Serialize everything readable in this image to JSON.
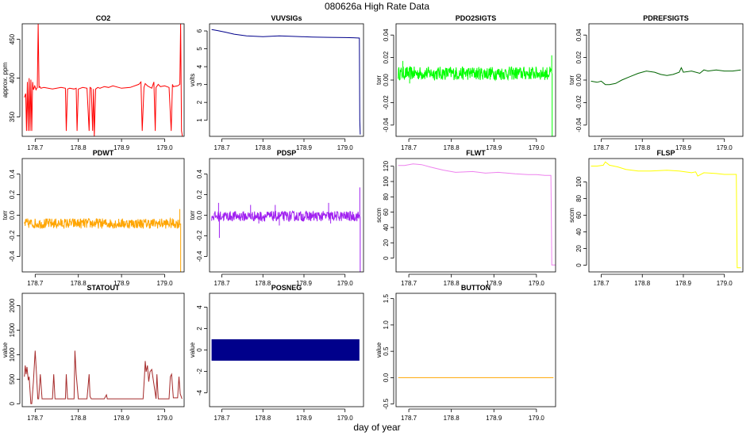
{
  "figure": {
    "main_title": "080626a   High Rate Data",
    "xlabel": "day of year"
  },
  "chart_data": [
    {
      "name": "CO2",
      "type": "line",
      "title": "CO2",
      "ylabel": "approx. ppm",
      "color": "#ff0000",
      "xlim": [
        178.67,
        179.045
      ],
      "ylim": [
        325,
        470
      ],
      "xticks": [
        178.7,
        178.8,
        178.9,
        179.0
      ],
      "xtick_labels": [
        "178.7",
        "178.8",
        "178.9",
        "179.0"
      ],
      "yticks": [
        350,
        400,
        450
      ],
      "ytick_labels": [
        "350",
        "400",
        "450"
      ],
      "series": [
        {
          "name": "CO2",
          "x": [
            178.675,
            178.678,
            178.68,
            178.682,
            178.684,
            178.686,
            178.688,
            178.69,
            178.692,
            178.694,
            178.696,
            178.699,
            178.702,
            178.705,
            178.707,
            178.709,
            178.711,
            178.713,
            178.72,
            178.74,
            178.76,
            178.77,
            178.772,
            178.775,
            178.78,
            178.79,
            178.795,
            178.797,
            178.8,
            178.81,
            178.82,
            178.825,
            178.827,
            178.83,
            178.833,
            178.835,
            178.837,
            178.84,
            178.845,
            178.85,
            178.86,
            178.87,
            178.88,
            178.9,
            178.92,
            178.94,
            178.945,
            178.948,
            178.952,
            178.955,
            178.96,
            178.97,
            178.975,
            178.978,
            178.98,
            178.985,
            178.99,
            179.0,
            179.01,
            179.015,
            179.018,
            179.02,
            179.03,
            179.035,
            179.037,
            179.039,
            179.041
          ],
          "y": [
            375,
            380,
            332,
            395,
            332,
            400,
            332,
            398,
            332,
            395,
            385,
            390,
            385,
            388,
            470,
            388,
            389,
            387,
            388,
            386,
            388,
            387,
            332,
            386,
            387,
            386,
            387,
            332,
            386,
            388,
            387,
            332,
            388,
            387,
            332,
            386,
            325,
            386,
            388,
            387,
            389,
            388,
            390,
            387,
            388,
            392,
            395,
            332,
            388,
            393,
            390,
            387,
            395,
            332,
            388,
            392,
            389,
            390,
            388,
            332,
            392,
            389,
            390,
            392,
            470,
            332,
            325
          ]
        }
      ]
    },
    {
      "name": "VUVSIGs",
      "type": "line",
      "title": "VUVSIGs",
      "ylabel": "volts",
      "color": "#00008b",
      "xlim": [
        178.67,
        179.045
      ],
      "ylim": [
        0.1,
        6.4
      ],
      "xticks": [
        178.7,
        178.8,
        178.9,
        179.0
      ],
      "xtick_labels": [
        "178.7",
        "178.8",
        "178.9",
        "179.0"
      ],
      "yticks": [
        1,
        2,
        3,
        4,
        5,
        6
      ],
      "ytick_labels": [
        "1",
        "2",
        "3",
        "4",
        "5",
        "6"
      ],
      "series": [
        {
          "name": "VUVSIGs",
          "x": [
            178.675,
            178.69,
            178.71,
            178.73,
            178.76,
            178.8,
            178.84,
            178.88,
            178.92,
            178.96,
            179.0,
            179.02,
            179.035,
            179.036,
            179.037
          ],
          "y": [
            6.08,
            6.02,
            5.92,
            5.82,
            5.72,
            5.68,
            5.72,
            5.69,
            5.66,
            5.64,
            5.63,
            5.62,
            5.6,
            1.0,
            0.2
          ]
        }
      ]
    },
    {
      "name": "PDO2SIGTS",
      "type": "line",
      "title": "PDO2SIGTS",
      "ylabel": "torr",
      "color": "#00ff00",
      "xlim": [
        178.67,
        179.045
      ],
      "ylim": [
        -0.05,
        0.05
      ],
      "xticks": [
        178.7,
        178.8,
        178.9,
        179.0
      ],
      "xtick_labels": [
        "178.7",
        "178.8",
        "178.9",
        "179.0"
      ],
      "yticks": [
        -0.04,
        -0.02,
        0.0,
        0.02,
        0.04
      ],
      "ytick_labels": [
        "-0.04",
        "-0.02",
        "0.00",
        "0.02",
        "0.04"
      ],
      "series": [
        {
          "name": "PDO2SIGTS",
          "x": [
            178.675,
            179.035
          ],
          "y": [
            0.006,
            0.006
          ]
        }
      ],
      "noise_band": {
        "center": 0.006,
        "amplitude": 0.006,
        "spikes": [
          [
            178.686,
            0.017
          ],
          [
            178.702,
            -0.003
          ],
          [
            179.036,
            0.022
          ],
          [
            179.037,
            -0.05
          ]
        ]
      }
    },
    {
      "name": "PDREFSIGTS",
      "type": "line",
      "title": "PDREFSIGTS",
      "ylabel": "torr",
      "color": "#006400",
      "xlim": [
        178.67,
        179.045
      ],
      "ylim": [
        -0.05,
        0.05
      ],
      "xticks": [
        178.7,
        178.8,
        178.9,
        179.0
      ],
      "xtick_labels": [
        "178.7",
        "178.8",
        "178.9",
        "179.0"
      ],
      "yticks": [
        -0.04,
        -0.02,
        0.0,
        0.02,
        0.04
      ],
      "ytick_labels": [
        "-0.04",
        "-0.02",
        "0.00",
        "0.02",
        "0.04"
      ],
      "series": [
        {
          "name": "PDREFSIGTS",
          "x": [
            178.675,
            178.69,
            178.7,
            178.71,
            178.72,
            178.735,
            178.75,
            178.77,
            178.79,
            178.81,
            178.83,
            178.845,
            178.86,
            178.875,
            178.89,
            178.895,
            178.9,
            178.92,
            178.94,
            178.95,
            178.96,
            178.98,
            179.0,
            179.02,
            179.04
          ],
          "y": [
            -0.001,
            -0.002,
            -0.001,
            -0.004,
            -0.004,
            -0.003,
            0.0,
            0.003,
            0.006,
            0.008,
            0.007,
            0.005,
            0.004,
            0.005,
            0.007,
            0.011,
            0.007,
            0.008,
            0.006,
            0.009,
            0.008,
            0.009,
            0.008,
            0.008,
            0.009
          ]
        }
      ]
    },
    {
      "name": "PDWT",
      "type": "line",
      "title": "PDWT",
      "ylabel": "torr",
      "color": "#ffa500",
      "xlim": [
        178.67,
        179.045
      ],
      "ylim": [
        -0.55,
        0.55
      ],
      "xticks": [
        178.7,
        178.8,
        178.9,
        179.0
      ],
      "xtick_labels": [
        "178.7",
        "178.8",
        "178.9",
        "179.0"
      ],
      "yticks": [
        -0.4,
        -0.2,
        0.0,
        0.2,
        0.4
      ],
      "ytick_labels": [
        "-0.4",
        "-0.2",
        "0.0",
        "0.2",
        "0.4"
      ],
      "series": [
        {
          "name": "PDWT",
          "x": [
            178.675,
            179.035
          ],
          "y": [
            -0.08,
            -0.08
          ]
        }
      ],
      "noise_band": {
        "center": -0.08,
        "amplitude": 0.05,
        "spikes": [
          [
            179.035,
            0.06
          ],
          [
            179.037,
            -0.55
          ]
        ]
      }
    },
    {
      "name": "PDSP",
      "type": "line",
      "title": "PDSP",
      "ylabel": "torr",
      "color": "#a020f0",
      "xlim": [
        178.67,
        179.045
      ],
      "ylim": [
        -0.55,
        0.55
      ],
      "xticks": [
        178.7,
        178.8,
        178.9,
        179.0
      ],
      "xtick_labels": [
        "178.7",
        "178.8",
        "178.9",
        "179.0"
      ],
      "yticks": [
        -0.4,
        -0.2,
        0.0,
        0.2,
        0.4
      ],
      "ytick_labels": [
        "-0.4",
        "-0.2",
        "0.0",
        "0.2",
        "0.4"
      ],
      "series": [
        {
          "name": "PDSP",
          "x": [
            178.675,
            179.035
          ],
          "y": [
            -0.01,
            -0.01
          ]
        }
      ],
      "noise_band": {
        "center": -0.01,
        "amplitude": 0.05,
        "spikes": [
          [
            178.692,
            0.12
          ],
          [
            178.694,
            -0.22
          ],
          [
            178.77,
            0.1
          ],
          [
            178.79,
            -0.08
          ],
          [
            178.83,
            0.1
          ],
          [
            178.84,
            -0.1
          ],
          [
            178.96,
            0.12
          ],
          [
            178.965,
            -0.08
          ],
          [
            179.036,
            0.27
          ],
          [
            179.037,
            -0.55
          ]
        ]
      }
    },
    {
      "name": "FLWT",
      "type": "line",
      "title": "FLWT",
      "ylabel": "sccm",
      "color": "#ee82ee",
      "xlim": [
        178.67,
        179.045
      ],
      "ylim": [
        -18,
        130
      ],
      "xticks": [
        178.7,
        178.8,
        178.9,
        179.0
      ],
      "xtick_labels": [
        "178.7",
        "178.8",
        "178.9",
        "179.0"
      ],
      "yticks": [
        0,
        20,
        40,
        60,
        80,
        100,
        120
      ],
      "ytick_labels": [
        "0",
        "20",
        "40",
        "60",
        "80",
        "100",
        "120"
      ],
      "series": [
        {
          "name": "FLWT",
          "x": [
            178.675,
            178.69,
            178.71,
            178.73,
            178.75,
            178.78,
            178.81,
            178.85,
            178.88,
            178.91,
            178.95,
            178.98,
            179.0,
            179.02,
            179.034,
            179.035,
            179.036,
            179.045
          ],
          "y": [
            121,
            121,
            123,
            122,
            119,
            115,
            112,
            113,
            111,
            112,
            110,
            109,
            109,
            108,
            108,
            60,
            -9,
            -9
          ]
        }
      ]
    },
    {
      "name": "FLSP",
      "type": "line",
      "title": "FLSP",
      "ylabel": "sccm",
      "color": "#ffff00",
      "xlim": [
        178.67,
        179.045
      ],
      "ylim": [
        -8,
        128
      ],
      "xticks": [
        178.7,
        178.8,
        178.9,
        179.0
      ],
      "xtick_labels": [
        "178.7",
        "178.8",
        "178.9",
        "179.0"
      ],
      "yticks": [
        0,
        20,
        40,
        60,
        80,
        100
      ],
      "ytick_labels": [
        "0",
        "20",
        "40",
        "60",
        "80",
        "100"
      ],
      "series": [
        {
          "name": "FLSP",
          "x": [
            178.675,
            178.69,
            178.705,
            178.71,
            178.72,
            178.74,
            178.76,
            178.79,
            178.82,
            178.86,
            178.89,
            178.92,
            178.93,
            178.935,
            178.95,
            178.98,
            179.0,
            179.02,
            179.029,
            179.03,
            179.031,
            179.04
          ],
          "y": [
            119,
            119,
            120,
            124,
            120,
            118,
            115,
            113,
            113,
            114,
            113,
            111,
            112,
            107,
            111,
            110,
            109,
            109,
            109,
            60,
            -3,
            -3
          ]
        }
      ]
    },
    {
      "name": "STATOUT",
      "type": "line",
      "title": "STATOUT",
      "ylabel": "value",
      "color": "#a52a2a",
      "xlim": [
        178.67,
        179.045
      ],
      "ylim": [
        -60,
        2250
      ],
      "xticks": [
        178.7,
        178.8,
        178.9,
        179.0
      ],
      "xtick_labels": [
        "178.7",
        "178.8",
        "178.9",
        "179.0"
      ],
      "yticks": [
        0,
        500,
        1000,
        1500,
        2000
      ],
      "ytick_labels": [
        "0",
        "500",
        "1000",
        "1500",
        "2000"
      ],
      "series": [
        {
          "name": "STATOUT",
          "x": [
            178.675,
            178.677,
            178.679,
            178.681,
            178.684,
            178.686,
            178.69,
            178.692,
            178.696,
            178.7,
            178.703,
            178.706,
            178.708,
            178.712,
            178.716,
            178.72,
            178.74,
            178.743,
            178.746,
            178.75,
            178.77,
            178.772,
            178.775,
            178.79,
            178.792,
            178.795,
            178.8,
            178.82,
            178.825,
            178.827,
            178.83,
            178.85,
            178.86,
            178.865,
            178.867,
            178.87,
            178.9,
            178.95,
            178.953,
            178.955,
            178.957,
            178.96,
            178.963,
            178.966,
            178.97,
            178.975,
            178.98,
            178.982,
            178.985,
            179.01,
            179.013,
            179.016,
            179.02,
            179.03,
            179.033,
            179.036,
            179.04
          ],
          "y": [
            550,
            780,
            600,
            750,
            480,
            550,
            0,
            0,
            450,
            1080,
            600,
            100,
            100,
            600,
            100,
            100,
            100,
            600,
            100,
            100,
            100,
            600,
            100,
            100,
            1080,
            600,
            100,
            100,
            600,
            150,
            100,
            100,
            100,
            180,
            100,
            100,
            100,
            100,
            550,
            870,
            650,
            780,
            450,
            650,
            700,
            400,
            100,
            600,
            100,
            100,
            550,
            600,
            120,
            120,
            550,
            200,
            100
          ]
        }
      ]
    },
    {
      "name": "POSNEG",
      "type": "bar",
      "title": "POSNEG",
      "ylabel": "value",
      "color": "#00008b",
      "xlim": [
        178.67,
        179.045
      ],
      "ylim": [
        -5.3,
        5.3
      ],
      "xticks": [
        178.7,
        178.8,
        178.9,
        179.0
      ],
      "xtick_labels": [
        "178.7",
        "178.8",
        "178.9",
        "179.0"
      ],
      "yticks": [
        -4,
        -2,
        0,
        2,
        4
      ],
      "ytick_labels": [
        "-4",
        "-2",
        "0",
        "2",
        "4"
      ],
      "series": [
        {
          "name": "POSNEG",
          "x": [
            178.675,
            179.035
          ],
          "y_min": -1,
          "y_max": 1
        }
      ]
    },
    {
      "name": "BUTTON",
      "type": "line",
      "title": "BUTTON",
      "ylabel": "value",
      "color": "#ffa500",
      "xlim": [
        178.67,
        179.045
      ],
      "ylim": [
        -0.55,
        1.6
      ],
      "xticks": [
        178.7,
        178.8,
        178.9,
        179.0
      ],
      "xtick_labels": [
        "178.7",
        "178.8",
        "178.9",
        "179.0"
      ],
      "yticks": [
        -0.5,
        0.0,
        0.5,
        1.0,
        1.5
      ],
      "ytick_labels": [
        "-0.5",
        "0.0",
        "0.5",
        "1.0",
        "1.5"
      ],
      "series": [
        {
          "name": "BUTTON",
          "x": [
            178.675,
            179.04
          ],
          "y": [
            0,
            0
          ]
        }
      ]
    }
  ]
}
